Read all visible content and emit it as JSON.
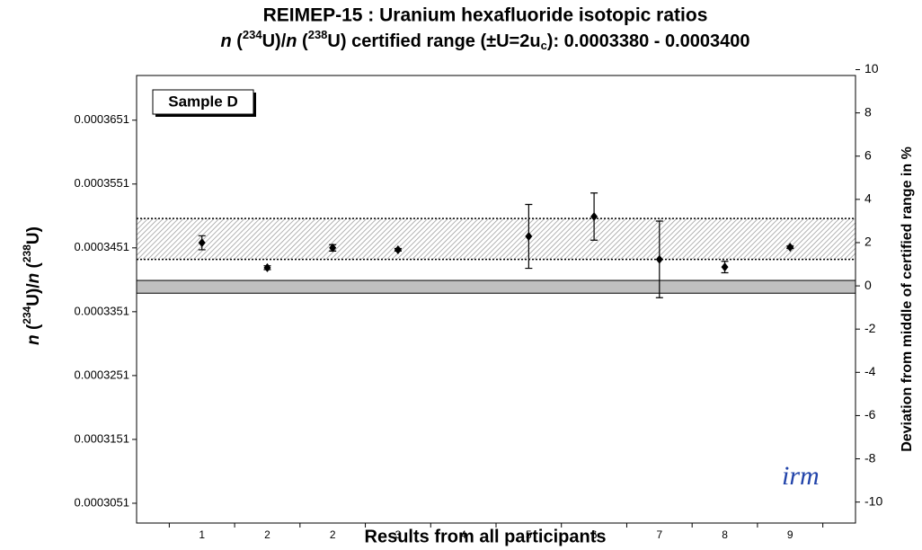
{
  "chart_data": {
    "type": "errorbar",
    "title": "REIMEP-15 :   Uranium hexafluoride isotopic ratios",
    "subtitle": [
      "n",
      " (",
      "234",
      "U)/",
      "n",
      " (",
      "238",
      "U) certified range (±U=2u",
      "c",
      "):  0.0003380 - 0.0003400"
    ],
    "sample_label": "Sample D",
    "x_label": "Results from all participants",
    "y_label": [
      "n",
      " (",
      "234",
      "U)/",
      "n",
      " (",
      "238",
      "U)"
    ],
    "y2_label": "Deviation from middle of certified range in %",
    "logo": "irm",
    "categories": [
      "1",
      "2",
      "2",
      "3",
      "4",
      "5",
      "6",
      "7",
      "8",
      "9"
    ],
    "series": [
      {
        "color": "#000000",
        "values": [
          0.0003459,
          0.000342,
          0.0003451,
          0.0003448,
          null,
          0.0003469,
          0.00035,
          0.0003433,
          0.0003421,
          0.0003452
        ],
        "errors": [
          1.1e-06,
          3e-07,
          5e-07,
          2e-07,
          null,
          5e-06,
          3.7e-06,
          6e-06,
          9e-07,
          2e-07
        ]
      }
    ],
    "certified_band": [
      0.000338,
      0.00034
    ],
    "hatched_band": [
      0.0003433,
      0.0003497
    ],
    "ylim": [
      0.000302,
      0.0003721
    ],
    "yticks": [
      0.0003051,
      0.0003151,
      0.0003251,
      0.0003351,
      0.0003451,
      0.0003551,
      0.0003651
    ],
    "y2lim": [
      -10.97,
      9.73
    ],
    "y2ticks": [
      -10,
      -8,
      -6,
      -4,
      -2,
      0,
      2,
      4,
      6,
      8,
      10
    ]
  }
}
